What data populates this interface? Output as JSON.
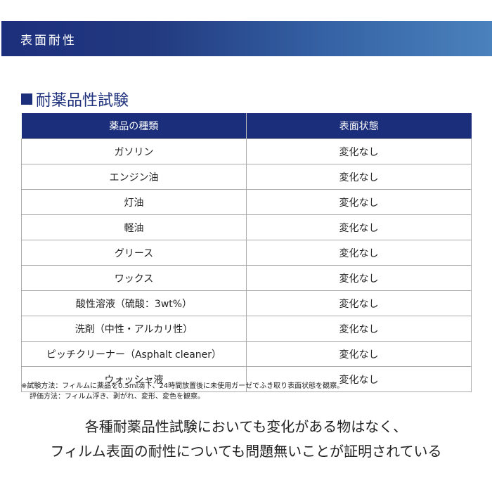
{
  "banner": {
    "title": "表面耐性"
  },
  "section": {
    "title": "耐薬品性試験"
  },
  "table": {
    "headers": [
      "薬品の種類",
      "表面状態"
    ],
    "rows": [
      [
        "ガソリン",
        "変化なし"
      ],
      [
        "エンジン油",
        "変化なし"
      ],
      [
        "灯油",
        "変化なし"
      ],
      [
        "軽油",
        "変化なし"
      ],
      [
        "グリース",
        "変化なし"
      ],
      [
        "ワックス",
        "変化なし"
      ],
      [
        "酸性溶液（硫酸：3wt%）",
        "変化なし"
      ],
      [
        "洗剤（中性・アルカリ性）",
        "変化なし"
      ],
      [
        "ピッチクリーナー（Asphalt cleaner）",
        "変化なし"
      ],
      [
        "ウォッシャ液",
        "変化なし"
      ]
    ]
  },
  "notes": [
    "※試験方法：フィルムに薬品を0.5ml滴下、24時間放置後に未使用ガーゼでふき取り表面状態を観察。",
    "評価方法：フィルム浮き、剥がれ、変形、変色を観察。"
  ],
  "conclusion": [
    "各種耐薬品性試験においても変化がある物はなく、",
    "フィルム表面の耐性についても問題無いことが証明されている"
  ]
}
